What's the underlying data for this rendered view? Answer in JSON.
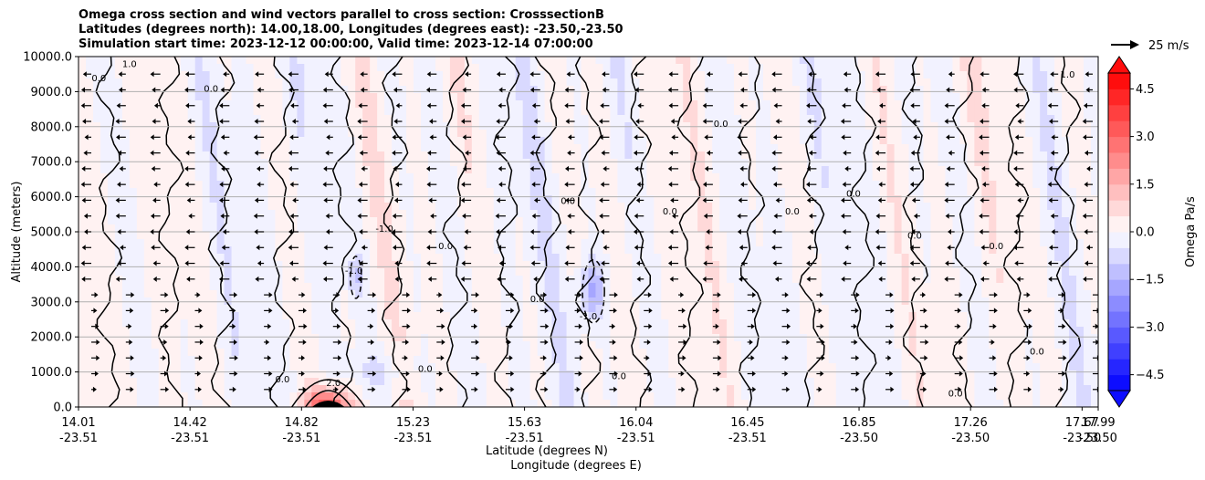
{
  "chart_data": {
    "type": "heatmap",
    "title_lines": [
      "Omega cross section and wind vectors parallel to cross section: CrosssectionB",
      "Latitudes (degrees north): 14.00,18.00, Longitudes (degrees east): -23.50,-23.50",
      "Simulation start time: 2023-12-12 00:00:00, Valid time: 2023-12-14 07:00:00"
    ],
    "xlabel_lines": [
      "Latitude (degrees N)",
      "Longitude (degrees E)"
    ],
    "ylabel": "Altitude (meters)",
    "x_ticks": [
      {
        "lat": "14.01",
        "lon": "-23.51"
      },
      {
        "lat": "14.42",
        "lon": "-23.51"
      },
      {
        "lat": "14.82",
        "lon": "-23.51"
      },
      {
        "lat": "15.23",
        "lon": "-23.51"
      },
      {
        "lat": "15.63",
        "lon": "-23.51"
      },
      {
        "lat": "16.04",
        "lon": "-23.51"
      },
      {
        "lat": "16.45",
        "lon": "-23.51"
      },
      {
        "lat": "16.85",
        "lon": "-23.50"
      },
      {
        "lat": "17.26",
        "lon": "-23.50"
      },
      {
        "lat": "17.67",
        "lon": "-23.50"
      },
      {
        "lat": "17.99",
        "lon": "-23.50"
      }
    ],
    "xlim": [
      14.01,
      17.99
    ],
    "y_ticks": [
      0,
      1000,
      2000,
      3000,
      4000,
      5000,
      6000,
      7000,
      8000,
      9000,
      10000
    ],
    "y_tick_labels": [
      "0.0",
      "1000.0",
      "2000.0",
      "3000.0",
      "4000.0",
      "5000.0",
      "6000.0",
      "7000.0",
      "8000.0",
      "9000.0",
      "10000.0"
    ],
    "ylim": [
      0,
      10000
    ],
    "grid": "horizontal",
    "colorbar": {
      "label": "Omega Pa/s",
      "range": [
        -5.0,
        5.0
      ],
      "extend": "both",
      "ticks": [
        4.5,
        3.0,
        1.5,
        0.0,
        -1.5,
        -3.0,
        -4.5
      ],
      "tick_labels": [
        "4.5",
        "3.0",
        "1.5",
        "0.0",
        "−1.5",
        "−3.0",
        "−4.5"
      ],
      "colormap": "bwr",
      "colors": {
        "negative": "#0000ff",
        "zero": "#ffffff",
        "positive": "#ff0000"
      }
    },
    "contour_labels": [
      "0.0",
      "1.0",
      "-1.0",
      "2.0"
    ],
    "contour_levels": [
      -1.0,
      0.0,
      1.0,
      2.0
    ],
    "quiver_key": {
      "label": "25 m/s",
      "value": 25
    },
    "wind_vectors": {
      "direction": "southward (towards lower latitude) aloft, northward near surface",
      "upper_speed_ms": 8,
      "surface_speed_ms": 6
    }
  }
}
